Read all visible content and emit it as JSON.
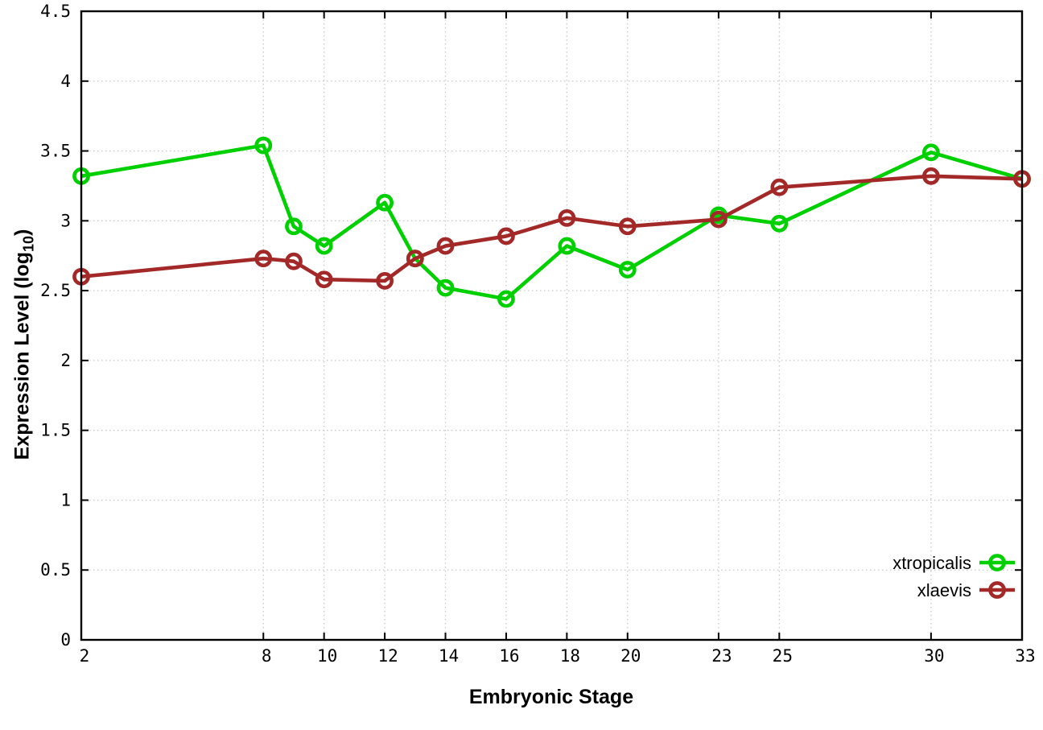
{
  "chart_data": {
    "type": "line",
    "title": "",
    "xlabel": "Embryonic Stage",
    "ylabel": "Expression Level (log10)",
    "ylabel_parts": {
      "main": "Expression Level (log",
      "sub": "10",
      "suffix": ")"
    },
    "x": [
      2,
      8,
      9,
      10,
      12,
      13,
      14,
      16,
      18,
      20,
      23,
      25,
      30,
      33
    ],
    "series": [
      {
        "name": "xtropicalis",
        "color": "#00d000",
        "values": [
          3.32,
          3.54,
          2.96,
          2.82,
          3.13,
          2.73,
          2.52,
          2.44,
          2.82,
          2.65,
          3.04,
          2.98,
          3.49,
          3.3
        ]
      },
      {
        "name": "xlaevis",
        "color": "#a32929",
        "values": [
          2.6,
          2.73,
          2.71,
          2.58,
          2.57,
          2.73,
          2.82,
          2.89,
          3.02,
          2.96,
          3.01,
          3.24,
          3.32,
          3.3
        ]
      }
    ],
    "xlim": [
      2,
      33
    ],
    "ylim": [
      0,
      4.5
    ],
    "x_ticks": [
      2,
      8,
      10,
      12,
      14,
      16,
      18,
      20,
      23,
      25,
      30,
      33
    ],
    "x_tick_labels": [
      "2",
      "8",
      "10",
      "12",
      "14",
      "16",
      "18",
      "20",
      "23",
      "25",
      "30",
      "33"
    ],
    "y_ticks": [
      0,
      0.5,
      1,
      1.5,
      2,
      2.5,
      3,
      3.5,
      4,
      4.5
    ],
    "y_tick_labels": [
      "0",
      "0.5",
      "1",
      "1.5",
      "2",
      "2.5",
      "3",
      "3.5",
      "4",
      "4.5"
    ],
    "grid": true,
    "legend_position": "inside-bottom-right",
    "colors": {
      "background": "#ffffff",
      "axis": "#000000",
      "grid": "#c8c8c8",
      "xtropicalis": "#00d000",
      "xlaevis": "#a32929"
    }
  }
}
